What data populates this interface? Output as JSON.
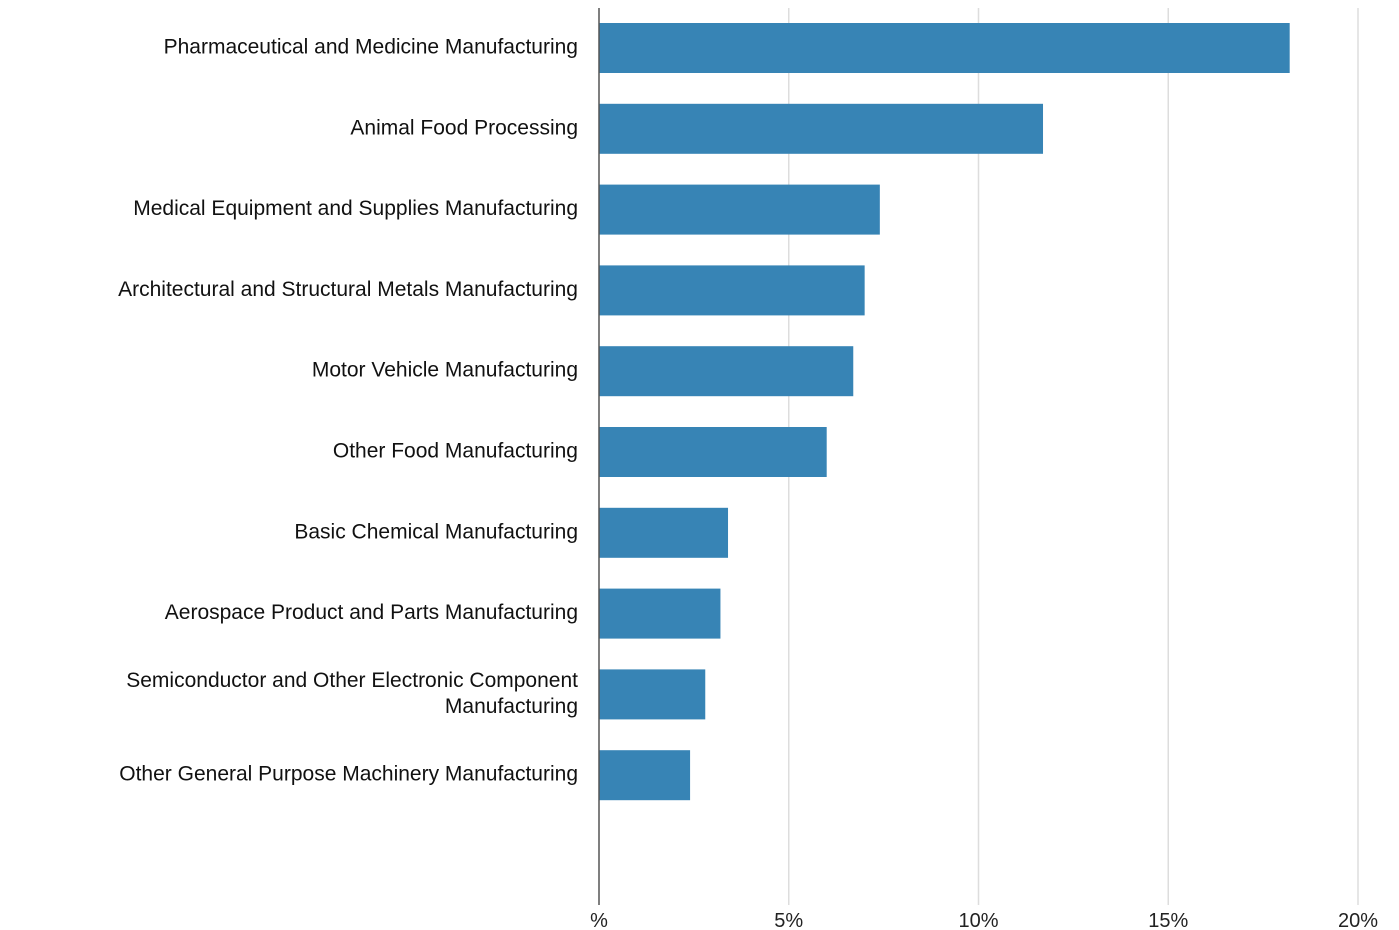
{
  "chart_data": {
    "type": "bar",
    "orientation": "horizontal",
    "categories": [
      "Pharmaceutical and Medicine Manufacturing",
      "Animal Food Processing",
      "Medical Equipment and Supplies Manufacturing",
      "Architectural and Structural Metals Manufacturing",
      "Motor Vehicle Manufacturing",
      "Other Food Manufacturing",
      "Basic Chemical Manufacturing",
      "Aerospace Product and Parts Manufacturing",
      "Semiconductor and Other Electronic Component Manufacturing",
      "Other General Purpose Machinery Manufacturing"
    ],
    "category_lines": [
      [
        "Pharmaceutical and Medicine Manufacturing"
      ],
      [
        "Animal Food Processing"
      ],
      [
        "Medical Equipment and Supplies Manufacturing"
      ],
      [
        "Architectural and Structural Metals Manufacturing"
      ],
      [
        "Motor Vehicle Manufacturing"
      ],
      [
        "Other Food Manufacturing"
      ],
      [
        "Basic Chemical Manufacturing"
      ],
      [
        "Aerospace Product and Parts Manufacturing"
      ],
      [
        "Semiconductor and Other Electronic Component",
        "Manufacturing"
      ],
      [
        "Other General Purpose Machinery Manufacturing"
      ]
    ],
    "values": [
      18.2,
      11.7,
      7.4,
      7.0,
      6.7,
      6.0,
      3.4,
      3.2,
      2.8,
      2.4
    ],
    "xlim": [
      0,
      20
    ],
    "xticks": [
      0,
      5,
      10,
      15,
      20
    ],
    "xtick_labels": [
      "%",
      "5%",
      "10%",
      "15%",
      "20%"
    ],
    "title": "",
    "xlabel": "",
    "ylabel": "",
    "grid": "vertical",
    "legend": "none",
    "bar_color": "#3784b5",
    "grid_color": "#dddddd",
    "axis_color": "#555555"
  }
}
